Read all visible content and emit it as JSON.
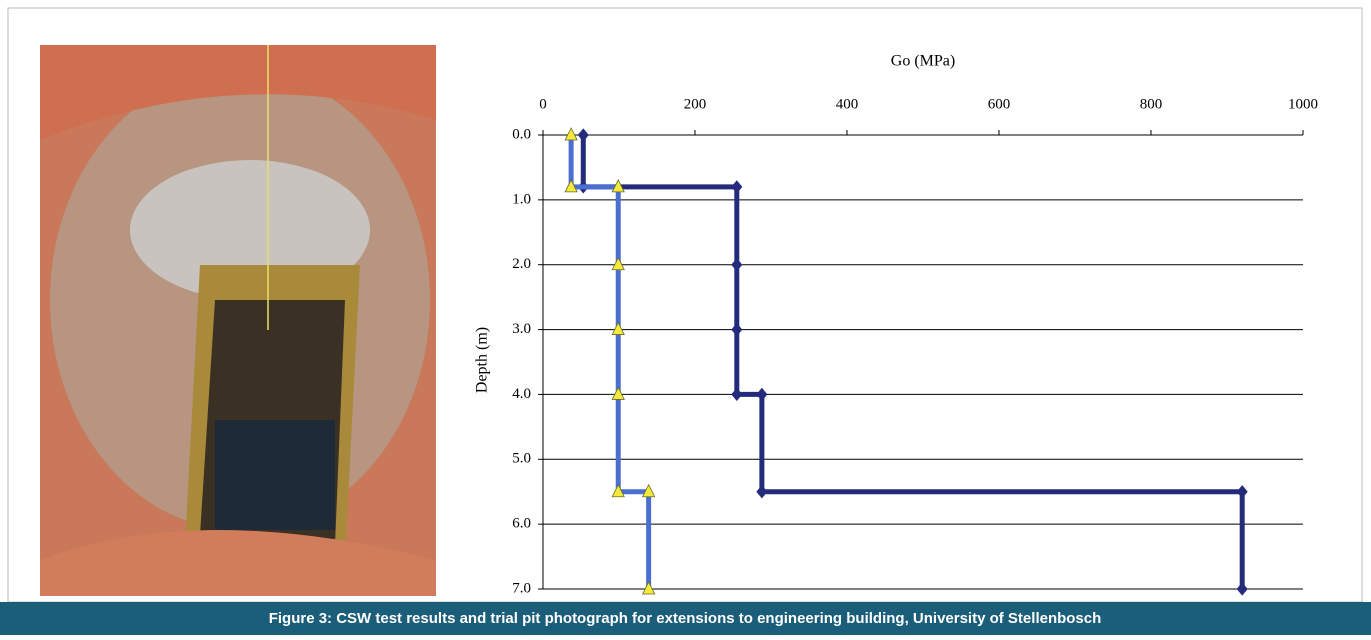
{
  "chart_data": {
    "type": "line",
    "x_label": "Go (MPa)",
    "y_label": "Depth (m)",
    "xlim": [
      0,
      1000
    ],
    "xticks": [
      0,
      200,
      400,
      600,
      800,
      1000
    ],
    "ylim": [
      0,
      7
    ],
    "yticks": [
      {
        "value": 0,
        "label": "0.0"
      },
      {
        "value": 1,
        "label": "1.0"
      },
      {
        "value": 2,
        "label": "2.0"
      },
      {
        "value": 3,
        "label": "3.0"
      },
      {
        "value": 4,
        "label": "4.0"
      },
      {
        "value": 5,
        "label": "5.0"
      },
      {
        "value": 6,
        "label": "6.0"
      },
      {
        "value": 7,
        "label": "7.0"
      }
    ],
    "y_inverted": true,
    "x_axis_top": true,
    "grid": true,
    "series": [
      {
        "color": "#242a7c",
        "marker": "diamond",
        "marker_color": "#242a7c",
        "x": [
          53,
          53,
          255,
          255,
          255,
          255,
          288,
          288,
          920,
          920
        ],
        "values": [
          0,
          0.8,
          0.8,
          2,
          3,
          4,
          4,
          5.5,
          5.5,
          7
        ]
      },
      {
        "color": "#4a6fd0",
        "marker": "triangle",
        "marker_color": "#f3ea3c",
        "x": [
          37,
          37,
          99,
          99,
          99,
          99,
          99,
          139,
          139
        ],
        "values": [
          0,
          0.8,
          0.8,
          2,
          3,
          4,
          5.5,
          5.5,
          7
        ]
      }
    ]
  },
  "caption": "Figure 3: CSW test results and trial pit photograph for extensions to engineering building, University of Stellenbosch"
}
